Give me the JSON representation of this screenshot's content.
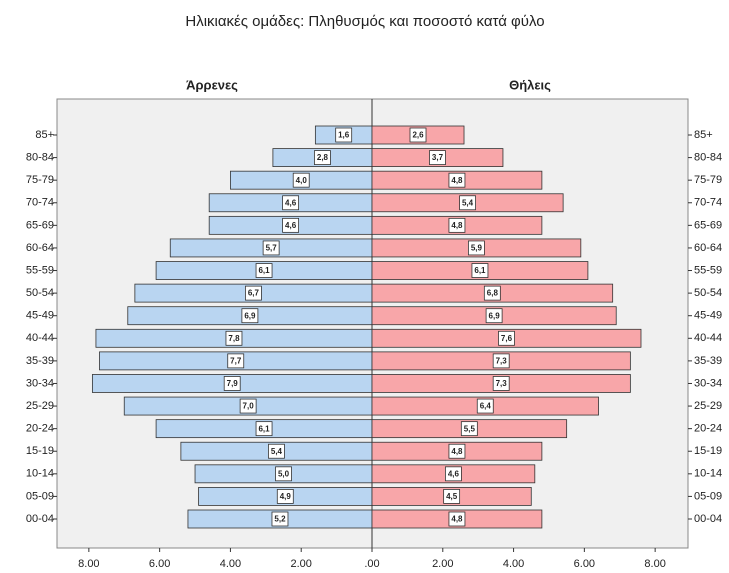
{
  "chart_data": {
    "type": "bar",
    "title": "Ηλικιακές ομάδες: Πληθυσμός και ποσοστό κατά φύλο",
    "categories": [
      "85+",
      "80-84",
      "75-79",
      "70-74",
      "65-69",
      "60-64",
      "55-59",
      "50-54",
      "45-49",
      "40-44",
      "35-39",
      "30-34",
      "25-29",
      "20-24",
      "15-19",
      "10-14",
      "05-09",
      "00-04"
    ],
    "xlim": [
      0,
      8.9
    ],
    "series": [
      {
        "name": "Άρρενες",
        "color": "#b9d5f1",
        "values": [
          1.6,
          2.8,
          4.0,
          4.6,
          4.6,
          5.7,
          6.1,
          6.7,
          6.9,
          7.8,
          7.7,
          7.9,
          7.0,
          6.1,
          5.4,
          5.0,
          4.9,
          5.2
        ],
        "value_labels": [
          "1,6",
          "2,8",
          "4,0",
          "4,6",
          "4,6",
          "5,7",
          "6,1",
          "6,7",
          "6,9",
          "7,8",
          "7,7",
          "7,9",
          "7,0",
          "6,1",
          "5,4",
          "5,0",
          "4,9",
          "5,2"
        ],
        "xticks": [
          {
            "value": 8,
            "label": "8.00"
          },
          {
            "value": 6,
            "label": "6.00"
          },
          {
            "value": 4,
            "label": "4.00"
          },
          {
            "value": 2,
            "label": "2.00"
          },
          {
            "value": 0,
            "label": ".00"
          }
        ]
      },
      {
        "name": "Θήλεις",
        "color": "#f8a6a9",
        "values": [
          2.6,
          3.7,
          4.8,
          5.4,
          4.8,
          5.9,
          6.1,
          6.8,
          6.9,
          7.6,
          7.3,
          7.3,
          6.4,
          5.5,
          4.8,
          4.6,
          4.5,
          4.8
        ],
        "value_labels": [
          "2,6",
          "3,7",
          "4,8",
          "5,4",
          "4,8",
          "5,9",
          "6,1",
          "6,8",
          "6,9",
          "7,6",
          "7,3",
          "7,3",
          "6,4",
          "5,5",
          "4,8",
          "4,6",
          "4,5",
          "4,8"
        ],
        "xticks": [
          {
            "value": 2,
            "label": "2.00"
          },
          {
            "value": 4,
            "label": "4.00"
          },
          {
            "value": 6,
            "label": "6.00"
          },
          {
            "value": 8,
            "label": "8.00"
          }
        ]
      }
    ]
  }
}
